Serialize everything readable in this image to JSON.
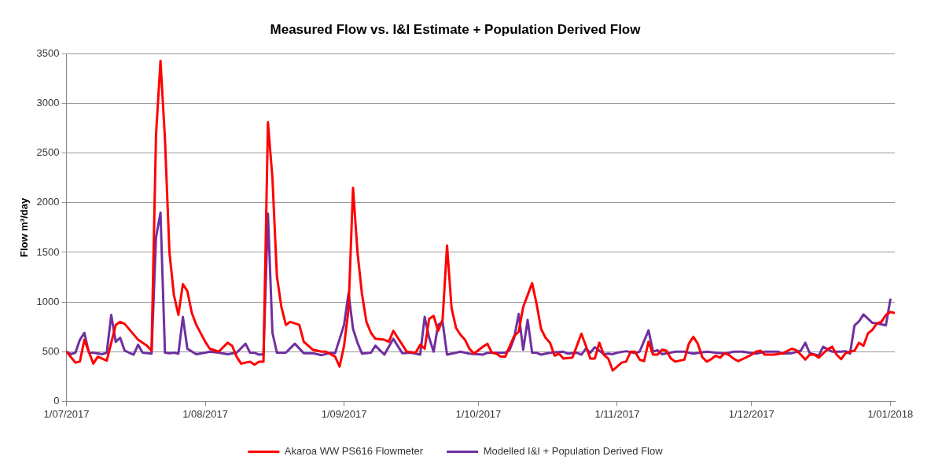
{
  "chart_data": {
    "type": "line",
    "title": "Measured Flow vs. I&I Estimate + Population Derived Flow",
    "ylabel": "Flow m³/day",
    "xlim": [
      "2017-07-01",
      "2018-01-02"
    ],
    "xticks": [
      {
        "value": "2017-07-01",
        "label": "1/07/2017"
      },
      {
        "value": "2017-08-01",
        "label": "1/08/2017"
      },
      {
        "value": "2017-09-01",
        "label": "1/09/2017"
      },
      {
        "value": "2017-10-01",
        "label": "1/10/2017"
      },
      {
        "value": "2017-11-01",
        "label": "1/11/2017"
      },
      {
        "value": "2017-12-01",
        "label": "1/12/2017"
      },
      {
        "value": "2018-01-01",
        "label": "1/01/2018"
      }
    ],
    "ylim": [
      0,
      3500
    ],
    "yticks": [
      0,
      500,
      1000,
      1500,
      2000,
      2500,
      3000,
      3500
    ],
    "grid": "y",
    "legend": "bottom",
    "marker": "none",
    "line_style": "solid",
    "series": [
      {
        "name": "Akaroa WW PS616 Flowmeter",
        "color": "#ff0000",
        "x": [
          "2017-07-01",
          "2017-07-03",
          "2017-07-04",
          "2017-07-05",
          "2017-07-07",
          "2017-07-08",
          "2017-07-10",
          "2017-07-12",
          "2017-07-13",
          "2017-07-14",
          "2017-07-17",
          "2017-07-19",
          "2017-07-20",
          "2017-07-21",
          "2017-07-22",
          "2017-07-23",
          "2017-07-24",
          "2017-07-25",
          "2017-07-26",
          "2017-07-27",
          "2017-07-28",
          "2017-07-29",
          "2017-07-30",
          "2017-08-01",
          "2017-08-02",
          "2017-08-04",
          "2017-08-06",
          "2017-08-07",
          "2017-08-08",
          "2017-08-09",
          "2017-08-11",
          "2017-08-12",
          "2017-08-13",
          "2017-08-14",
          "2017-08-15",
          "2017-08-16",
          "2017-08-17",
          "2017-08-18",
          "2017-08-19",
          "2017-08-20",
          "2017-08-22",
          "2017-08-23",
          "2017-08-25",
          "2017-08-27",
          "2017-08-28",
          "2017-08-30",
          "2017-08-31",
          "2017-09-01",
          "2017-09-02",
          "2017-09-03",
          "2017-09-04",
          "2017-09-05",
          "2017-09-06",
          "2017-09-07",
          "2017-09-08",
          "2017-09-10",
          "2017-09-11",
          "2017-09-12",
          "2017-09-14",
          "2017-09-15",
          "2017-09-17",
          "2017-09-18",
          "2017-09-19",
          "2017-09-20",
          "2017-09-21",
          "2017-09-22",
          "2017-09-23",
          "2017-09-24",
          "2017-09-25",
          "2017-09-26",
          "2017-09-27",
          "2017-09-28",
          "2017-09-29",
          "2017-09-30",
          "2017-10-02",
          "2017-10-03",
          "2017-10-04",
          "2017-10-05",
          "2017-10-06",
          "2017-10-07",
          "2017-10-09",
          "2017-10-10",
          "2017-10-11",
          "2017-10-13",
          "2017-10-14",
          "2017-10-15",
          "2017-10-16",
          "2017-10-17",
          "2017-10-18",
          "2017-10-19",
          "2017-10-20",
          "2017-10-22",
          "2017-10-24",
          "2017-10-25",
          "2017-10-26",
          "2017-10-27",
          "2017-10-28",
          "2017-10-29",
          "2017-10-30",
          "2017-10-31",
          "2017-11-02",
          "2017-11-03",
          "2017-11-04",
          "2017-11-05",
          "2017-11-06",
          "2017-11-07",
          "2017-11-08",
          "2017-11-09",
          "2017-11-10",
          "2017-11-11",
          "2017-11-12",
          "2017-11-13",
          "2017-11-14",
          "2017-11-16",
          "2017-11-17",
          "2017-11-18",
          "2017-11-19",
          "2017-11-20",
          "2017-11-21",
          "2017-11-22",
          "2017-11-23",
          "2017-11-24",
          "2017-11-25",
          "2017-11-26",
          "2017-11-27",
          "2017-11-28",
          "2017-11-29",
          "2017-12-01",
          "2017-12-02",
          "2017-12-03",
          "2017-12-04",
          "2017-12-06",
          "2017-12-08",
          "2017-12-10",
          "2017-12-11",
          "2017-12-12",
          "2017-12-13",
          "2017-12-14",
          "2017-12-15",
          "2017-12-16",
          "2017-12-18",
          "2017-12-19",
          "2017-12-20",
          "2017-12-21",
          "2017-12-22",
          "2017-12-23",
          "2017-12-24",
          "2017-12-25",
          "2017-12-26",
          "2017-12-27",
          "2017-12-28",
          "2017-12-29",
          "2017-12-30",
          "2017-12-31",
          "2018-01-01",
          "2018-01-02"
        ],
        "values": [
          500,
          390,
          400,
          620,
          380,
          450,
          410,
          770,
          800,
          780,
          620,
          560,
          510,
          2680,
          3430,
          2640,
          1500,
          1070,
          870,
          1180,
          1110,
          890,
          770,
          600,
          530,
          500,
          590,
          560,
          450,
          380,
          400,
          370,
          400,
          400,
          2810,
          2250,
          1260,
          950,
          770,
          800,
          770,
          600,
          520,
          500,
          500,
          450,
          350,
          560,
          930,
          2150,
          1500,
          1080,
          800,
          690,
          630,
          620,
          600,
          710,
          570,
          500,
          490,
          570,
          530,
          830,
          860,
          710,
          820,
          1570,
          940,
          740,
          670,
          620,
          530,
          480,
          550,
          580,
          490,
          480,
          450,
          450,
          660,
          700,
          950,
          1190,
          980,
          730,
          640,
          590,
          460,
          480,
          430,
          440,
          680,
          560,
          430,
          430,
          590,
          470,
          430,
          310,
          390,
          400,
          500,
          500,
          420,
          405,
          600,
          470,
          470,
          520,
          510,
          430,
          400,
          420,
          580,
          650,
          580,
          445,
          400,
          425,
          460,
          440,
          485,
          465,
          430,
          405,
          425,
          470,
          500,
          510,
          470,
          470,
          485,
          530,
          515,
          470,
          420,
          470,
          470,
          440,
          525,
          550,
          470,
          425,
          485,
          500,
          510,
          590,
          560,
          685,
          720,
          785,
          800,
          870,
          900,
          890
        ]
      },
      {
        "name": "Modelled I&I + Population Derived Flow",
        "color": "#7030a0",
        "x": [
          "2017-07-01",
          "2017-07-02",
          "2017-07-03",
          "2017-07-04",
          "2017-07-05",
          "2017-07-06",
          "2017-07-07",
          "2017-07-09",
          "2017-07-10",
          "2017-07-11",
          "2017-07-12",
          "2017-07-13",
          "2017-07-14",
          "2017-07-16",
          "2017-07-17",
          "2017-07-18",
          "2017-07-20",
          "2017-07-21",
          "2017-07-22",
          "2017-07-23",
          "2017-07-24",
          "2017-07-25",
          "2017-07-26",
          "2017-07-27",
          "2017-07-28",
          "2017-07-30",
          "2017-08-01",
          "2017-08-02",
          "2017-08-04",
          "2017-08-06",
          "2017-08-08",
          "2017-08-10",
          "2017-08-11",
          "2017-08-12",
          "2017-08-13",
          "2017-08-14",
          "2017-08-15",
          "2017-08-16",
          "2017-08-17",
          "2017-08-19",
          "2017-08-21",
          "2017-08-23",
          "2017-08-25",
          "2017-08-27",
          "2017-08-29",
          "2017-08-30",
          "2017-09-01",
          "2017-09-02",
          "2017-09-03",
          "2017-09-04",
          "2017-09-05",
          "2017-09-07",
          "2017-09-08",
          "2017-09-10",
          "2017-09-12",
          "2017-09-14",
          "2017-09-16",
          "2017-09-18",
          "2017-09-19",
          "2017-09-20",
          "2017-09-21",
          "2017-09-22",
          "2017-09-23",
          "2017-09-24",
          "2017-09-27",
          "2017-09-29",
          "2017-10-02",
          "2017-10-03",
          "2017-10-07",
          "2017-10-08",
          "2017-10-09",
          "2017-10-10",
          "2017-10-11",
          "2017-10-12",
          "2017-10-13",
          "2017-10-14",
          "2017-10-15",
          "2017-10-17",
          "2017-10-20",
          "2017-10-21",
          "2017-10-23",
          "2017-10-24",
          "2017-10-25",
          "2017-10-26",
          "2017-10-27",
          "2017-10-29",
          "2017-10-30",
          "2017-10-31",
          "2017-11-01",
          "2017-11-03",
          "2017-11-05",
          "2017-11-06",
          "2017-11-08",
          "2017-11-09",
          "2017-11-10",
          "2017-11-11",
          "2017-11-14",
          "2017-11-16",
          "2017-11-18",
          "2017-11-21",
          "2017-11-25",
          "2017-11-27",
          "2017-11-29",
          "2017-12-02",
          "2017-12-04",
          "2017-12-07",
          "2017-12-08",
          "2017-12-10",
          "2017-12-12",
          "2017-12-13",
          "2017-12-14",
          "2017-12-16",
          "2017-12-17",
          "2017-12-18",
          "2017-12-19",
          "2017-12-21",
          "2017-12-22",
          "2017-12-23",
          "2017-12-24",
          "2017-12-25",
          "2017-12-26",
          "2017-12-28",
          "2017-12-29",
          "2017-12-31",
          "2018-01-01"
        ],
        "values": [
          500,
          475,
          490,
          620,
          690,
          490,
          490,
          475,
          490,
          870,
          600,
          640,
          510,
          470,
          570,
          490,
          480,
          1650,
          1900,
          490,
          485,
          490,
          480,
          850,
          530,
          475,
          490,
          500,
          490,
          475,
          490,
          580,
          490,
          490,
          470,
          475,
          1890,
          690,
          490,
          490,
          580,
          485,
          485,
          465,
          490,
          485,
          770,
          1090,
          730,
          590,
          480,
          490,
          560,
          470,
          630,
          485,
          490,
          470,
          850,
          640,
          500,
          770,
          800,
          470,
          500,
          480,
          470,
          490,
          490,
          520,
          640,
          880,
          520,
          820,
          490,
          490,
          470,
          490,
          500,
          480,
          490,
          470,
          530,
          490,
          545,
          475,
          480,
          475,
          490,
          505,
          485,
          500,
          715,
          500,
          515,
          475,
          500,
          500,
          480,
          500,
          480,
          500,
          500,
          480,
          500,
          500,
          480,
          485,
          510,
          590,
          485,
          460,
          550,
          525,
          500,
          500,
          505,
          480,
          765,
          805,
          875,
          790,
          785,
          765,
          1025
        ]
      }
    ]
  }
}
